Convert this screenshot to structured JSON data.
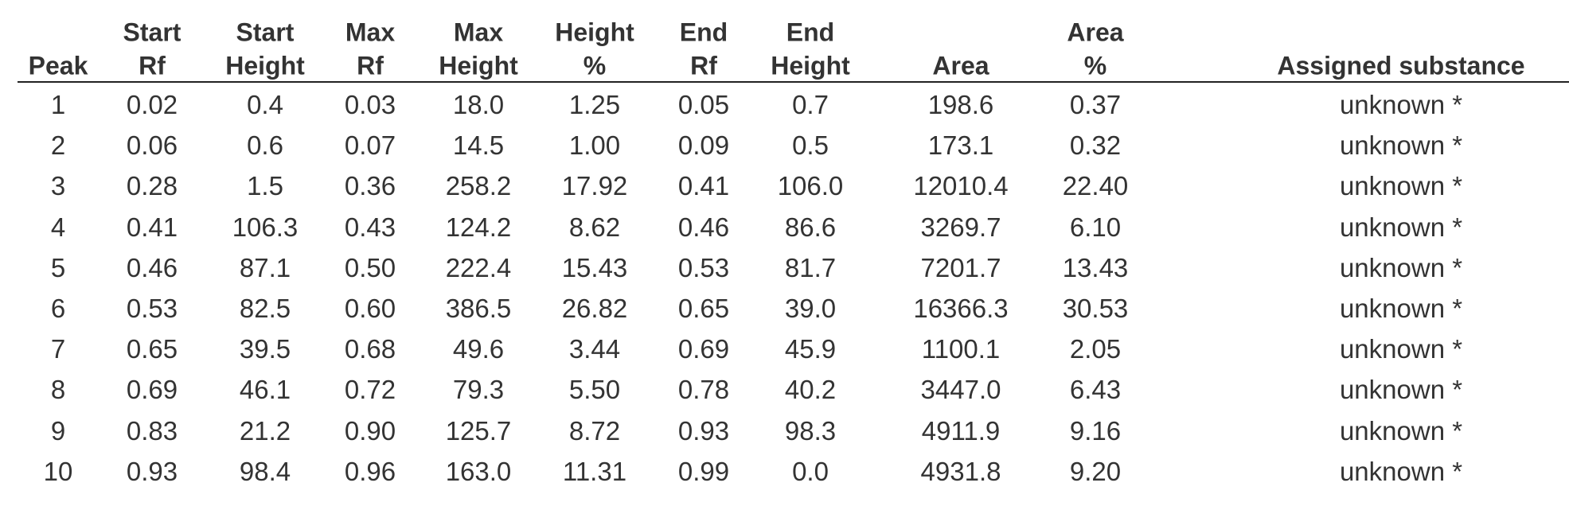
{
  "table": {
    "header": [
      [
        "Peak"
      ],
      [
        "Start",
        "Rf"
      ],
      [
        "Start",
        "Height"
      ],
      [
        "Max",
        "Rf"
      ],
      [
        "Max",
        "Height"
      ],
      [
        "Height",
        "%"
      ],
      [
        "End",
        "Rf"
      ],
      [
        "End",
        "Height"
      ],
      [
        "Area"
      ],
      [
        "Area",
        "%"
      ],
      [
        "Assigned substance"
      ]
    ],
    "rows": [
      [
        "1",
        "0.02",
        "0.4",
        "0.03",
        "18.0",
        "1.25",
        "0.05",
        "0.7",
        "198.6",
        "0.37",
        "unknown *"
      ],
      [
        "2",
        "0.06",
        "0.6",
        "0.07",
        "14.5",
        "1.00",
        "0.09",
        "0.5",
        "173.1",
        "0.32",
        "unknown *"
      ],
      [
        "3",
        "0.28",
        "1.5",
        "0.36",
        "258.2",
        "17.92",
        "0.41",
        "106.0",
        "12010.4",
        "22.40",
        "unknown *"
      ],
      [
        "4",
        "0.41",
        "106.3",
        "0.43",
        "124.2",
        "8.62",
        "0.46",
        "86.6",
        "3269.7",
        "6.10",
        "unknown *"
      ],
      [
        "5",
        "0.46",
        "87.1",
        "0.50",
        "222.4",
        "15.43",
        "0.53",
        "81.7",
        "7201.7",
        "13.43",
        "unknown *"
      ],
      [
        "6",
        "0.53",
        "82.5",
        "0.60",
        "386.5",
        "26.82",
        "0.65",
        "39.0",
        "16366.3",
        "30.53",
        "unknown *"
      ],
      [
        "7",
        "0.65",
        "39.5",
        "0.68",
        "49.6",
        "3.44",
        "0.69",
        "45.9",
        "1100.1",
        "2.05",
        "unknown *"
      ],
      [
        "8",
        "0.69",
        "46.1",
        "0.72",
        "79.3",
        "5.50",
        "0.78",
        "40.2",
        "3447.0",
        "6.43",
        "unknown *"
      ],
      [
        "9",
        "0.83",
        "21.2",
        "0.90",
        "125.7",
        "8.72",
        "0.93",
        "98.3",
        "4911.9",
        "9.16",
        "unknown *"
      ],
      [
        "10",
        "0.93",
        "98.4",
        "0.96",
        "163.0",
        "11.31",
        "0.99",
        "0.0",
        "4931.8",
        "9.20",
        "unknown *"
      ]
    ]
  }
}
